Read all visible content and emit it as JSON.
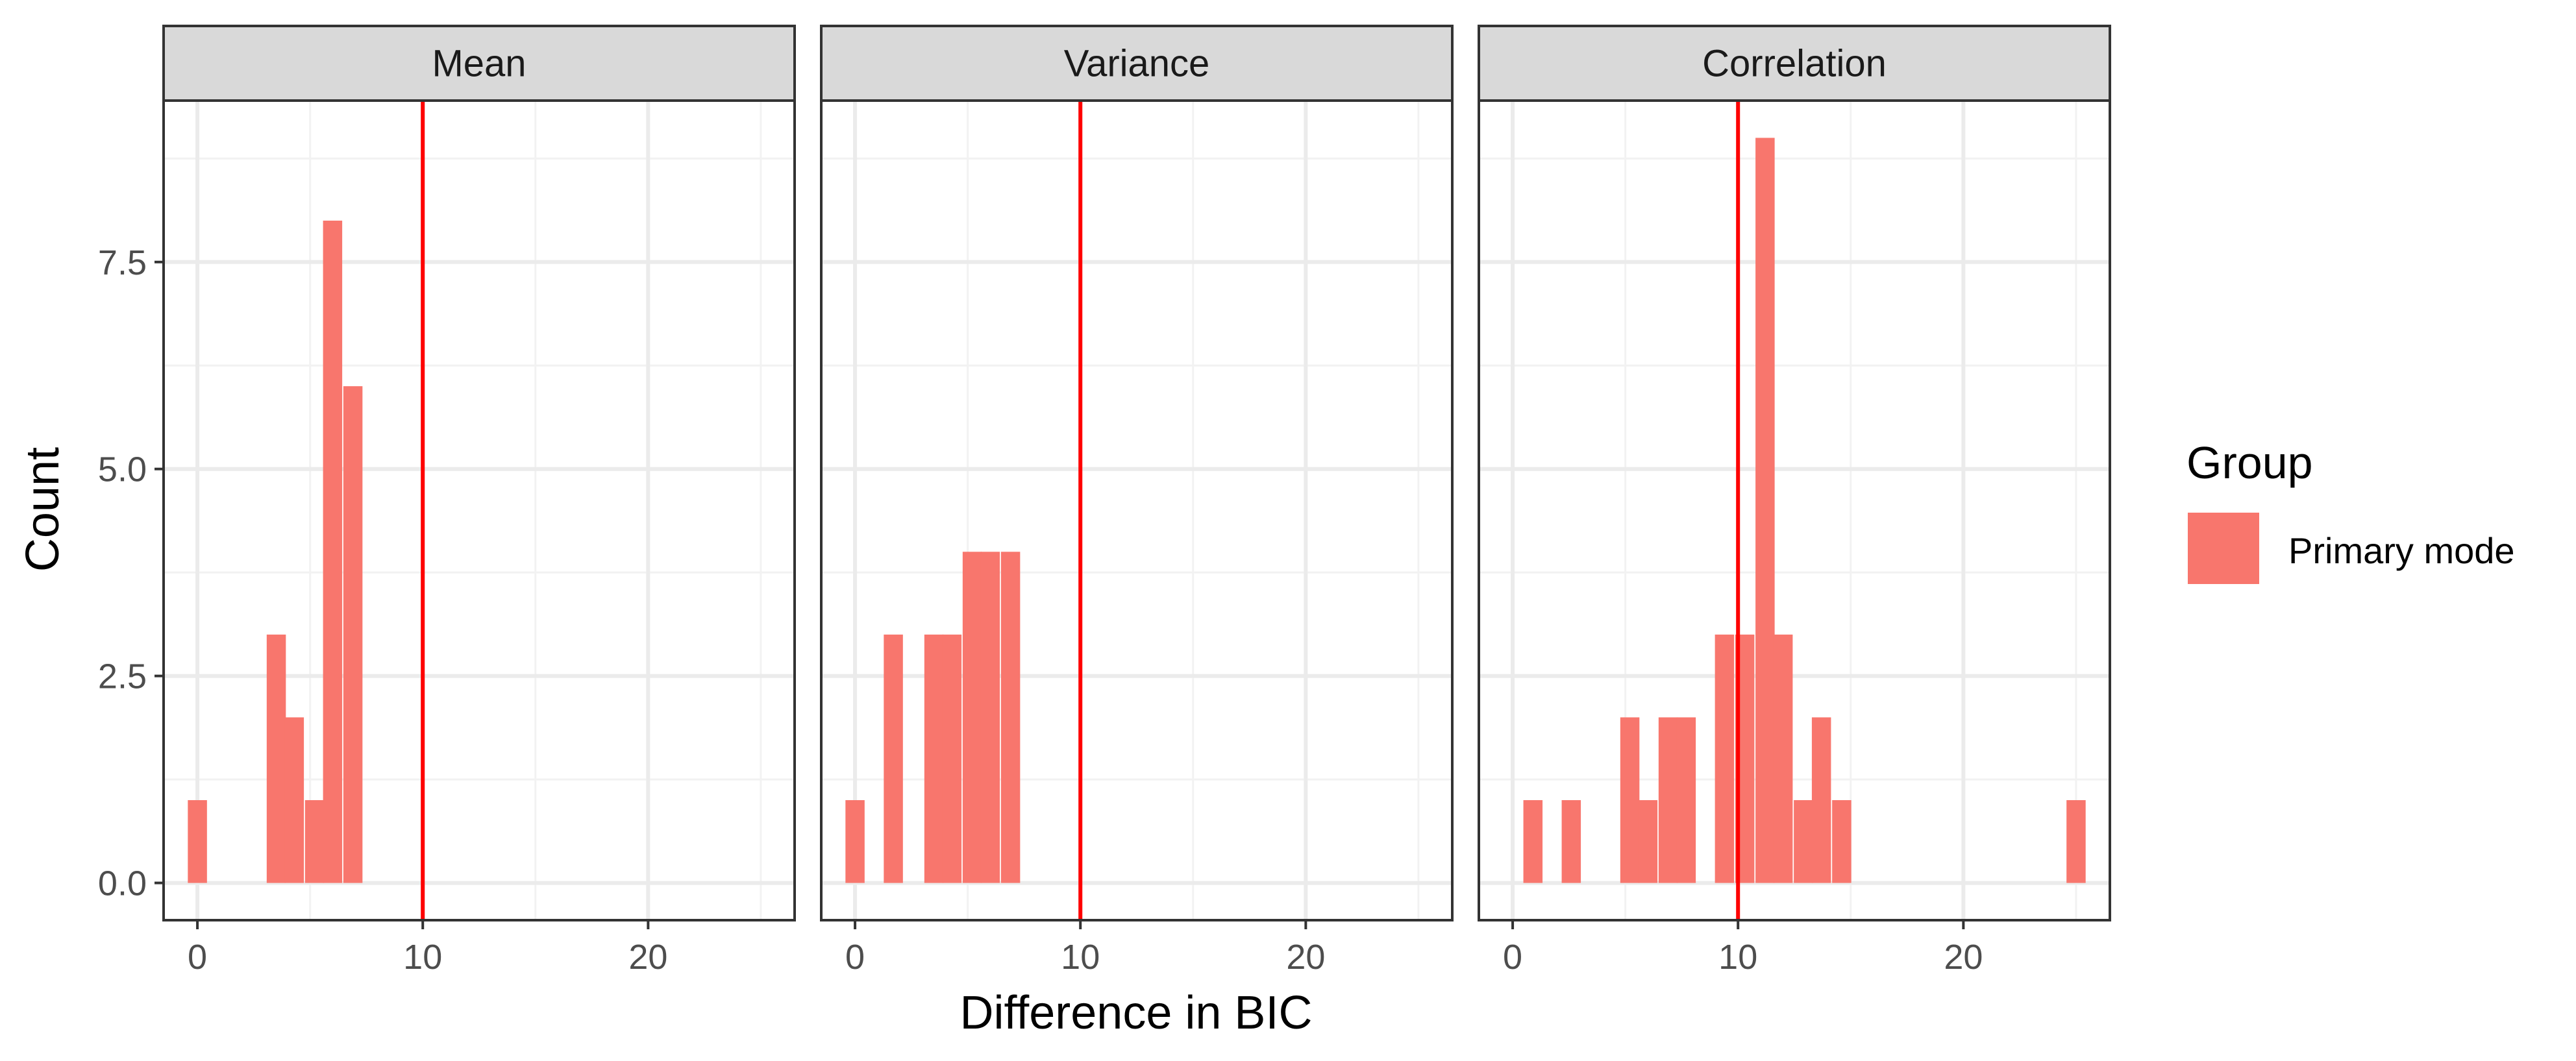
{
  "chart_data": {
    "type": "bar",
    "subtype": "faceted-histogram",
    "xlabel": "Difference in BIC",
    "ylabel": "Count",
    "xlim": [
      -1.5,
      26.5
    ],
    "ylim": [
      -0.45,
      9.45
    ],
    "x_ticks": [
      0,
      10,
      20
    ],
    "y_ticks": [
      0.0,
      2.5,
      5.0,
      7.5
    ],
    "y_tick_labels": [
      "0.0",
      "2.5",
      "5.0",
      "7.5"
    ],
    "bin_width": 0.85,
    "grid": true,
    "reference_line": {
      "x": 10,
      "color": "#ff0000"
    },
    "legend": {
      "title": "Group",
      "position": "right",
      "entries": [
        {
          "name": "Primary mode",
          "color": "#f8766d"
        }
      ]
    },
    "panels": [
      {
        "title": "Mean",
        "bins": [
          {
            "x": 0.0,
            "count": 1
          },
          {
            "x": 3.5,
            "count": 3
          },
          {
            "x": 4.3,
            "count": 2
          },
          {
            "x": 5.2,
            "count": 1
          },
          {
            "x": 6.0,
            "count": 8
          },
          {
            "x": 6.9,
            "count": 6
          }
        ]
      },
      {
        "title": "Variance",
        "bins": [
          {
            "x": 0.0,
            "count": 1
          },
          {
            "x": 1.7,
            "count": 3
          },
          {
            "x": 3.5,
            "count": 3
          },
          {
            "x": 4.3,
            "count": 3
          },
          {
            "x": 5.2,
            "count": 4
          },
          {
            "x": 6.0,
            "count": 4
          },
          {
            "x": 6.9,
            "count": 4
          }
        ]
      },
      {
        "title": "Correlation",
        "bins": [
          {
            "x": 0.9,
            "count": 1
          },
          {
            "x": 2.6,
            "count": 1
          },
          {
            "x": 5.2,
            "count": 2
          },
          {
            "x": 6.0,
            "count": 1
          },
          {
            "x": 6.9,
            "count": 2
          },
          {
            "x": 7.7,
            "count": 2
          },
          {
            "x": 9.4,
            "count": 3
          },
          {
            "x": 10.3,
            "count": 3
          },
          {
            "x": 11.2,
            "count": 9
          },
          {
            "x": 12.0,
            "count": 3
          },
          {
            "x": 12.9,
            "count": 1
          },
          {
            "x": 13.7,
            "count": 2
          },
          {
            "x": 14.6,
            "count": 1
          },
          {
            "x": 25.0,
            "count": 1
          }
        ]
      }
    ]
  }
}
